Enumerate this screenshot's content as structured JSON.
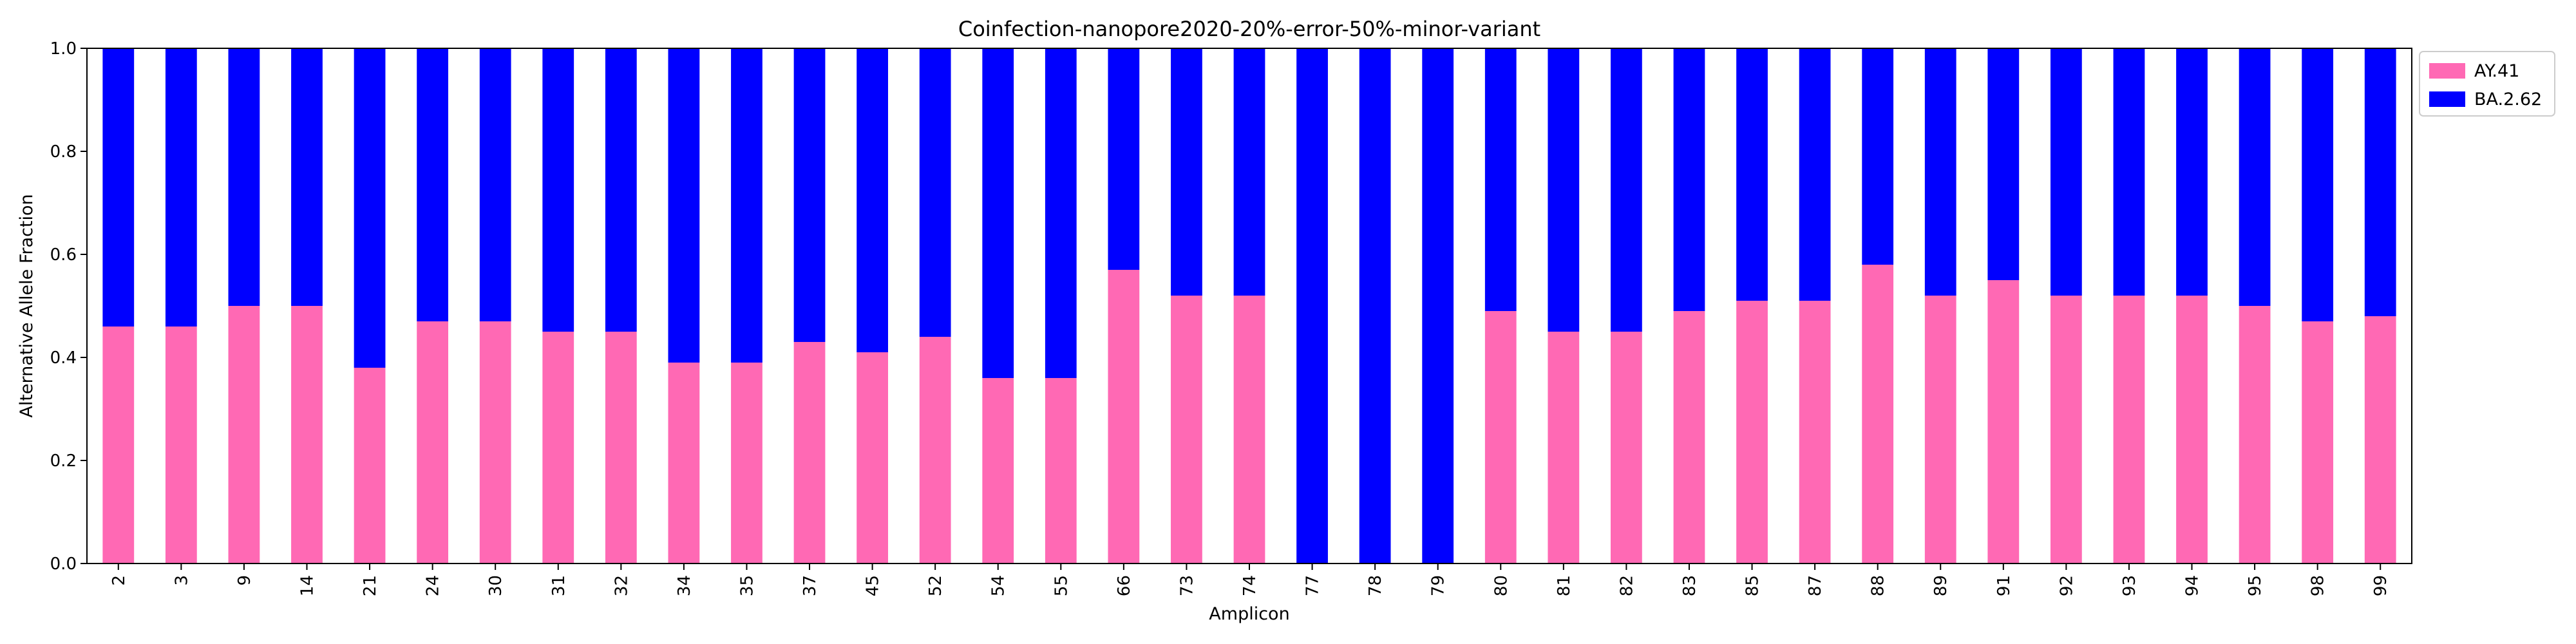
{
  "chart_data": {
    "type": "bar",
    "stacked": true,
    "title": "Coinfection-nanopore2020-20%-error-50%-minor-variant",
    "xlabel": "Amplicon",
    "ylabel": "Alternative Allele Fraction",
    "ylim": [
      0,
      1.0
    ],
    "yticks": [
      "0.0",
      "0.2",
      "0.4",
      "0.6",
      "0.8",
      "1.0"
    ],
    "grid": false,
    "legend_position": "outside-top-right",
    "categories": [
      "2",
      "3",
      "9",
      "14",
      "21",
      "24",
      "30",
      "31",
      "32",
      "34",
      "35",
      "37",
      "45",
      "52",
      "54",
      "55",
      "66",
      "73",
      "74",
      "77",
      "78",
      "79",
      "80",
      "81",
      "82",
      "83",
      "85",
      "87",
      "88",
      "89",
      "91",
      "92",
      "93",
      "94",
      "95",
      "98",
      "99"
    ],
    "series": [
      {
        "name": "AY.41",
        "color": "#ff69b4",
        "values": [
          0.46,
          0.46,
          0.5,
          0.5,
          0.38,
          0.47,
          0.47,
          0.45,
          0.45,
          0.39,
          0.39,
          0.43,
          0.41,
          0.44,
          0.36,
          0.36,
          0.57,
          0.52,
          0.52,
          0.0,
          0.0,
          0.0,
          0.49,
          0.45,
          0.45,
          0.49,
          0.51,
          0.51,
          0.58,
          0.52,
          0.55,
          0.52,
          0.52,
          0.52,
          0.5,
          0.47,
          0.48
        ]
      },
      {
        "name": "BA.2.62",
        "color": "#0000ff",
        "values": [
          0.54,
          0.54,
          0.5,
          0.5,
          0.62,
          0.53,
          0.53,
          0.55,
          0.55,
          0.61,
          0.61,
          0.57,
          0.59,
          0.56,
          0.64,
          0.64,
          0.43,
          0.48,
          0.48,
          1.0,
          1.0,
          1.0,
          0.51,
          0.55,
          0.55,
          0.51,
          0.49,
          0.49,
          0.42,
          0.48,
          0.45,
          0.48,
          0.48,
          0.48,
          0.5,
          0.53,
          0.52
        ]
      }
    ]
  }
}
